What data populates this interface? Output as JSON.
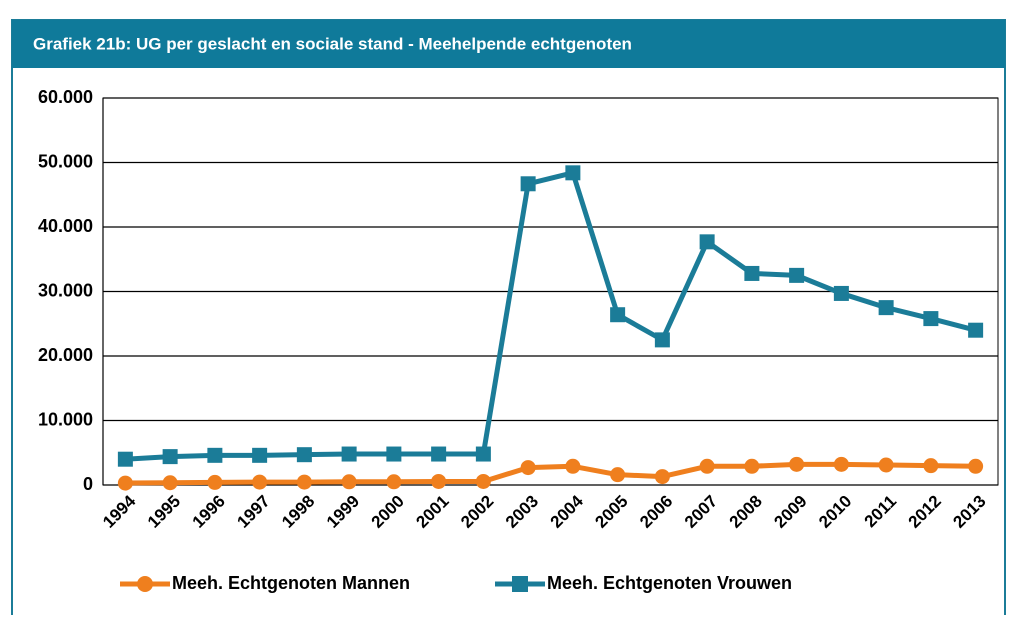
{
  "chart_data": {
    "type": "line",
    "title": "Grafiek 21b: UG per geslacht en sociale stand - Meehelpende  echtgenoten",
    "categories": [
      "1994",
      "1995",
      "1996",
      "1997",
      "1998",
      "1999",
      "2000",
      "2001",
      "2002",
      "2003",
      "2004",
      "2005",
      "2006",
      "2007",
      "2008",
      "2009",
      "2010",
      "2011",
      "2012",
      "2013"
    ],
    "series": [
      {
        "name": "Meeh. Echtgenoten Mannen",
        "color": "#ef7f1e",
        "marker": "circle",
        "values": [
          300,
          350,
          400,
          450,
          450,
          500,
          500,
          550,
          550,
          2700,
          2900,
          1600,
          1300,
          2900,
          2900,
          3200,
          3200,
          3100,
          3000,
          2900
        ]
      },
      {
        "name": "Meeh. Echtgenoten Vrouwen",
        "color": "#1b7c98",
        "marker": "square",
        "values": [
          4000,
          4400,
          4600,
          4600,
          4700,
          4800,
          4800,
          4800,
          4800,
          46700,
          48400,
          26400,
          22500,
          37700,
          32800,
          32500,
          29700,
          27500,
          25800,
          24000
        ]
      }
    ],
    "ylim": [
      0,
      60000
    ],
    "yticks": [
      0,
      {
        "value": 10000,
        "label": "10.000"
      },
      {
        "value": 20000,
        "label": "20.000"
      },
      {
        "value": 30000,
        "label": "30.000"
      },
      {
        "value": 40000,
        "label": "40.000"
      },
      {
        "value": 50000,
        "label": "50.000"
      },
      {
        "value": 60000,
        "label": "60.000"
      }
    ],
    "grid": true,
    "legend": "bottom"
  }
}
